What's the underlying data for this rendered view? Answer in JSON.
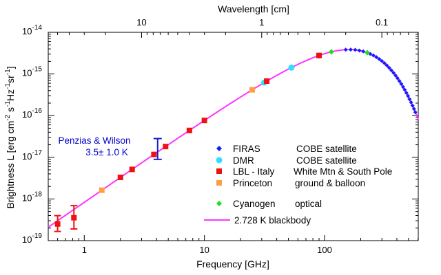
{
  "chart_data": {
    "type": "scatter",
    "title": "",
    "xlabel": "Frequency [GHz]",
    "ylabel": "Brightness L [erg cm^-2 s^-1 Hz^-1 sr^-1]",
    "top_xlabel": "Wavelength [cm]",
    "x_scale": "log",
    "y_scale": "log",
    "xlim_log10": [
      -0.3,
      2.78
    ],
    "ylim_log10": [
      -19,
      -14
    ],
    "x_ticks": [
      {
        "exp": 0,
        "label": "1"
      },
      {
        "exp": 1,
        "label": "10"
      },
      {
        "exp": 2,
        "label": "100"
      }
    ],
    "y_ticks": [
      {
        "exp": -19,
        "base": "10",
        "power": "-19"
      },
      {
        "exp": -18,
        "base": "10",
        "power": "-18"
      },
      {
        "exp": -17,
        "base": "10",
        "power": "-17"
      },
      {
        "exp": -16,
        "base": "10",
        "power": "-16"
      },
      {
        "exp": -15,
        "base": "10",
        "power": "-15"
      },
      {
        "exp": -14,
        "base": "10",
        "power": "-14"
      }
    ],
    "top_ticks": [
      {
        "wavelength_cm": 10,
        "label": "10"
      },
      {
        "wavelength_cm": 1,
        "label": "1"
      },
      {
        "wavelength_cm": 0.1,
        "label": "0.1"
      }
    ],
    "model": {
      "name": "2.728 K blackbody",
      "temperature_K": 2.728,
      "color": "#ff33ff"
    },
    "series": [
      {
        "name": "FIRAS",
        "note": "COBE satellite",
        "marker": "diamond",
        "color": "#1a1aff",
        "x": [
          150,
          165,
          180,
          195,
          210,
          240,
          255,
          270,
          285,
          300,
          315,
          330,
          345,
          360,
          375,
          390,
          405,
          420,
          435,
          450,
          465,
          480,
          495,
          510,
          525,
          540,
          555,
          570
        ]
      },
      {
        "name": "DMR",
        "note": "COBE satellite",
        "marker": "circle",
        "color": "#33ddff",
        "x": [
          31.5,
          53,
          90
        ]
      },
      {
        "name": "LBL - Italy",
        "note": "White Mtn & South Pole",
        "marker": "square",
        "color": "#ee1111",
        "x": [
          0.6,
          0.82,
          2.0,
          2.5,
          3.8,
          4.75,
          7.5,
          10,
          33,
          90
        ],
        "y_log10": [
          -18.6,
          -18.45,
          null,
          null,
          null,
          null,
          null,
          null,
          null,
          null
        ],
        "err_low_log10": [
          -18.78,
          -18.72
        ],
        "err_high_log10": [
          -18.4,
          -18.16
        ]
      },
      {
        "name": "Princeton",
        "note": "ground & balloon",
        "marker": "square",
        "color": "#ffa040",
        "x": [
          1.4,
          25
        ]
      },
      {
        "name": "Cyanogen",
        "note": "optical",
        "marker": "diamond",
        "color": "#22dd22",
        "x": [
          114,
          227
        ]
      }
    ],
    "annotation": {
      "line1": "Penzias & Wilson",
      "line2": "3.5± 1.0 K",
      "x": 4.08,
      "y_low_log10": -17.05,
      "y_high_log10": -16.55,
      "color": "#1a1acc"
    }
  }
}
